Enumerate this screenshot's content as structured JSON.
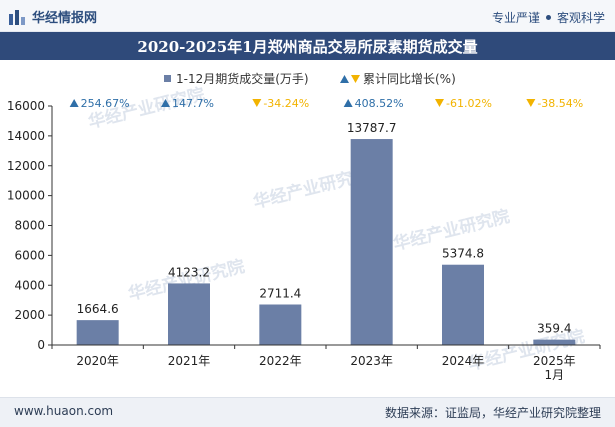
{
  "header": {
    "brand": "华经情报网",
    "tag1": "专业严谨",
    "tag2": "客观科学"
  },
  "title": "2020-2025年1月郑州商品交易所尿素期货成交量",
  "legend": {
    "series1": "1-12月期货成交量(万手)",
    "series2": "累计同比增长(%)"
  },
  "footer": {
    "site": "www.huaon.com",
    "source": "数据来源：证监局，华经产业研究院整理"
  },
  "watermark": "华经产业研究院",
  "colors": {
    "bar": "#6b7fa6",
    "up": "#2f6fa8",
    "down": "#f2b300",
    "title_bg": "#2f4a7a"
  },
  "chart_data": {
    "type": "bar",
    "categories": [
      "2020年",
      "2021年",
      "2022年",
      "2023年",
      "2024年",
      "2025年\n1月"
    ],
    "series": [
      {
        "name": "1-12月期货成交量(万手)",
        "values": [
          1664.6,
          4123.2,
          2711.4,
          13787.7,
          5374.8,
          359.4
        ]
      },
      {
        "name": "累计同比增长(%)",
        "values": [
          254.67,
          147.7,
          -34.24,
          408.52,
          -61.02,
          -38.54
        ]
      }
    ],
    "value_labels": [
      "1664.6",
      "4123.2",
      "2711.4",
      "13787.7",
      "5374.8",
      "359.4"
    ],
    "growth_labels": [
      "254.67%",
      "147.7%",
      "-34.24%",
      "408.52%",
      "-61.02%",
      "-38.54%"
    ],
    "ylim": [
      0,
      16000
    ],
    "yticks": [
      0,
      2000,
      4000,
      6000,
      8000,
      10000,
      12000,
      14000,
      16000
    ],
    "grid": false,
    "legend_position": "top"
  }
}
